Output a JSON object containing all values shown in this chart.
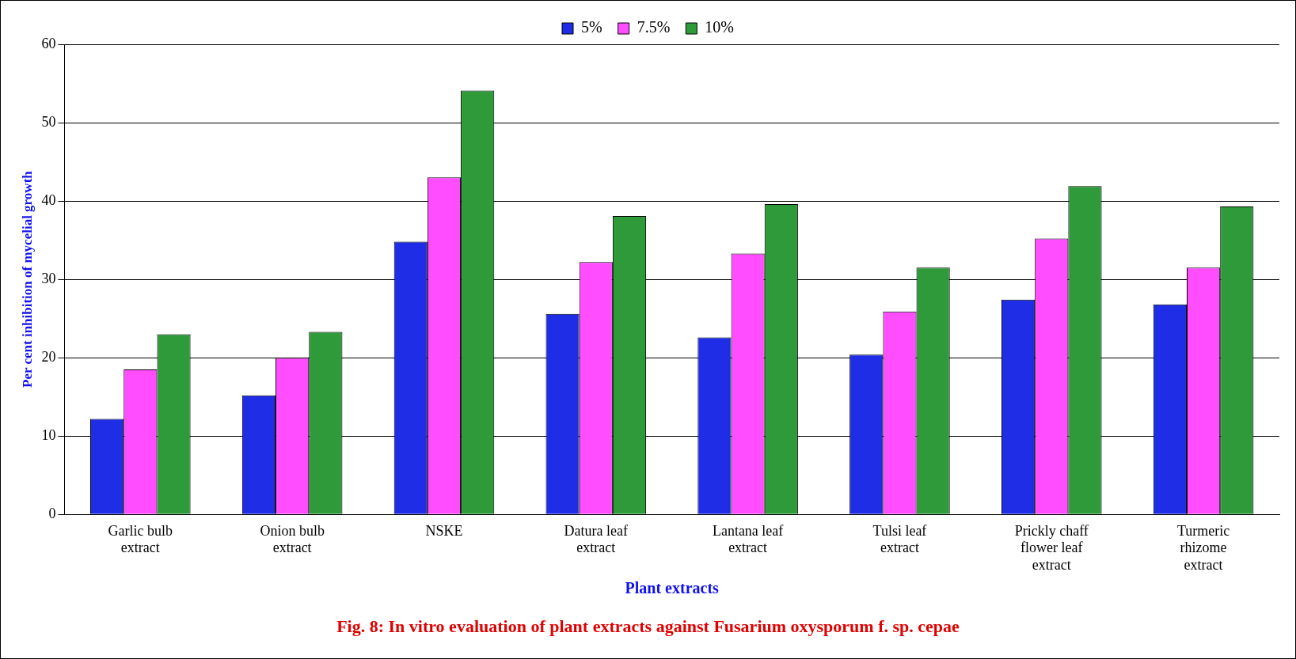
{
  "chart_data": {
    "type": "bar",
    "title": "Fig. 8: In vitro  evaluation of plant extracts against Fusarium oxysporum  f. sp. cepae",
    "xlabel": "Plant extracts",
    "ylabel": "Per cent inhibition of mycelial growth",
    "categories": [
      "Garlic bulb extract",
      "Onion bulb extract",
      "NSKE",
      "Datura leaf extract",
      "Lantana leaf extract",
      "Tulsi leaf extract",
      "Prickly chaff flower leaf extract",
      "Turmeric rhizome extract"
    ],
    "series": [
      {
        "name": "5%",
        "color": "#1f2ee6",
        "values": [
          12.2,
          15.2,
          34.8,
          25.6,
          22.6,
          20.4,
          27.4,
          26.8
        ]
      },
      {
        "name": "7.5%",
        "color": "#ff4dff",
        "values": [
          18.5,
          20.0,
          43.0,
          32.2,
          33.3,
          25.9,
          35.2,
          31.5
        ]
      },
      {
        "name": "10%",
        "color": "#2e9a3a",
        "values": [
          23.0,
          23.3,
          54.1,
          38.1,
          39.6,
          31.5,
          41.9,
          39.3
        ]
      }
    ],
    "ylim": [
      0,
      60
    ],
    "yticks": [
      0,
      10,
      20,
      30,
      40,
      50,
      60
    ],
    "grid": "y",
    "legend": "top"
  }
}
